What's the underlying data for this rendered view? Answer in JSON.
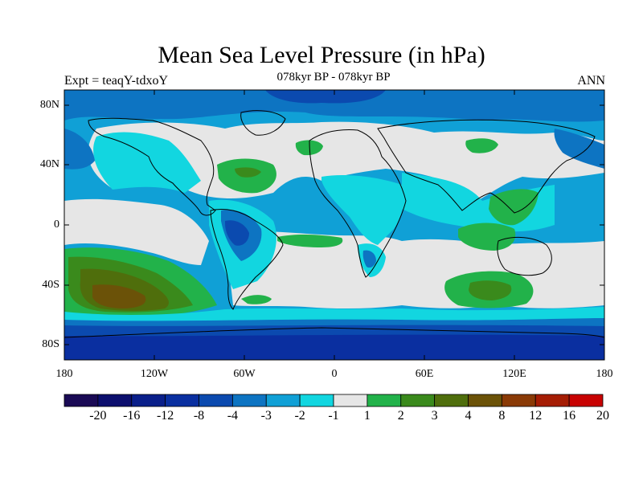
{
  "title": "Mean Sea Level Pressure (in hPa)",
  "experiment": "Expt = teaqY-tdxoY",
  "period": "078kyr BP - 078kyr BP",
  "season": "ANN",
  "y_axis_labels": [
    "80N",
    "40N",
    "0",
    "40S",
    "80S"
  ],
  "x_axis_labels": [
    "180",
    "120W",
    "60W",
    "0",
    "60E",
    "120E",
    "180"
  ],
  "colorbar": {
    "labels": [
      "-20",
      "-16",
      "-12",
      "-8",
      "-4",
      "-3",
      "-2",
      "-1",
      "1",
      "2",
      "3",
      "4",
      "8",
      "12",
      "16",
      "20"
    ],
    "colors": [
      "#1a0a55",
      "#0c0f6e",
      "#0a1f8a",
      "#0a2fa0",
      "#0b4aaf",
      "#0d74c2",
      "#10a0d6",
      "#12d6e0",
      "#e6e6e6",
      "#22b24a",
      "#3a8a1c",
      "#4f6e0c",
      "#6b5208",
      "#8a3a06",
      "#a51d04",
      "#c80202"
    ]
  },
  "map_colors": {
    "ocean_base": "#10a0d6",
    "neutral": "#e6e6e6",
    "cyan": "#12d6e0",
    "mid_blue": "#0d74c2",
    "deep_blue": "#0b4aaf",
    "darkest_blue": "#0a2fa0",
    "green": "#22b24a",
    "dark_green": "#3a8a1c",
    "olive": "#4f6e0c",
    "brown": "#6b5208",
    "coast": "#000000"
  }
}
